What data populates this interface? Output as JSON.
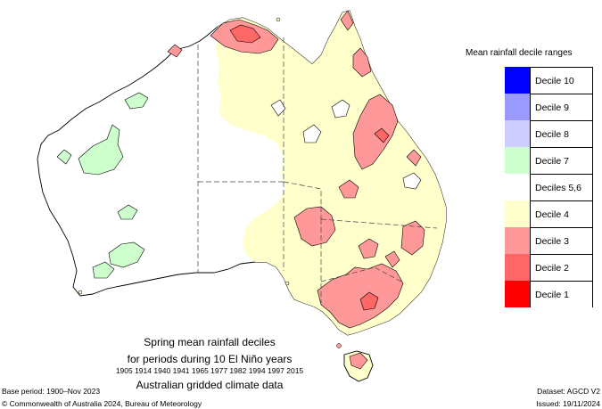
{
  "legend": {
    "title": "Mean rainfall decile ranges",
    "items": [
      {
        "label": "Decile 10",
        "color": "#0000ff"
      },
      {
        "label": "Decile 9",
        "color": "#9999ff"
      },
      {
        "label": "Decile 8",
        "color": "#ccccff"
      },
      {
        "label": "Decile 7",
        "color": "#ccffcc"
      },
      {
        "label": "Deciles 5,6",
        "color": "#ffffff"
      },
      {
        "label": "Decile 4",
        "color": "#ffffcc"
      },
      {
        "label": "Decile 3",
        "color": "#ff9999"
      },
      {
        "label": "Decile 2",
        "color": "#ff6666"
      },
      {
        "label": "Decile 1",
        "color": "#ff0000"
      }
    ]
  },
  "title": {
    "line1": "Spring mean rainfall deciles",
    "line2": "for periods during 10 El Niño years",
    "years": "1905 1914 1940 1941 1965 1977 1982 1994 1997 2015",
    "line4": "Australian gridded climate data"
  },
  "footer": {
    "base_period": "Base period: 1900–Nov 2023",
    "copyright": "© Commonwealth of Australia 2024, Bureau of Meteorology",
    "dataset": "Dataset: AGCD V2",
    "issued": "Issued: 19/11/2024"
  }
}
